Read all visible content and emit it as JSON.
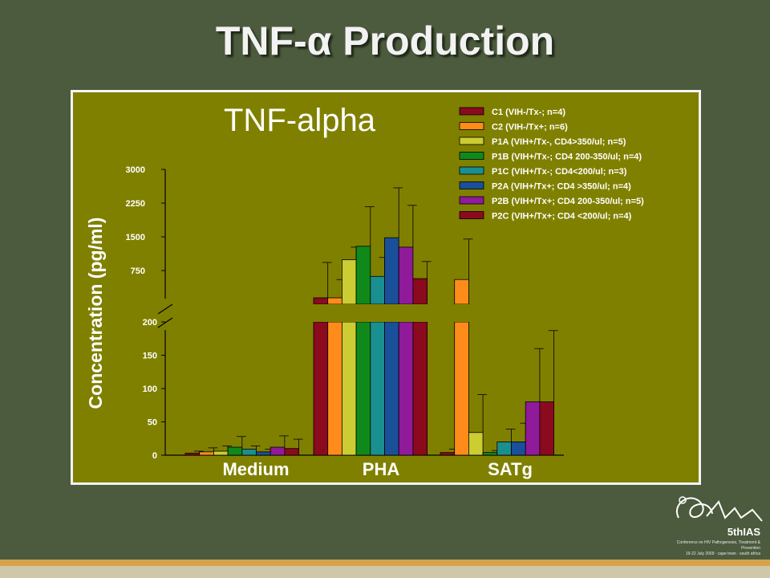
{
  "slide": {
    "title": "TNF-α Production"
  },
  "logo": {
    "name": "5thIAS",
    "subtitle": "Conference on HIV Pathogenesis, Treatment & Prevention",
    "dates": "19-22 July 2009 · cape town · south africa"
  },
  "chart_data": {
    "type": "bar",
    "title": "TNF-alpha",
    "ylabel": "Concentration (pg/ml)",
    "xlabel": "",
    "categories": [
      "Medium",
      "PHA",
      "SATg"
    ],
    "broken_axis": {
      "lower_range": [
        0,
        200
      ],
      "upper_range": [
        0,
        3000
      ],
      "lower_ticks": [
        0,
        50,
        100,
        150,
        200
      ],
      "upper_ticks": [
        750,
        1500,
        2250,
        3000
      ]
    },
    "legend_position": "top-right",
    "series": [
      {
        "name": "C1 (VIH-/Tx-; n=4)",
        "color": "#8b0a1e",
        "values": [
          3,
          200,
          4
        ],
        "errors": [
          3,
          930,
          5
        ]
      },
      {
        "name": "C2 (VIH-/Tx+; n=6)",
        "color": "#ff8c1a",
        "values": [
          5,
          200,
          550
        ],
        "errors": [
          6,
          550,
          900
        ]
      },
      {
        "name": "P1A (VIH+/Tx-, CD4>350/ul; n=5)",
        "color": "#cccc33",
        "values": [
          6,
          990,
          34
        ],
        "errors": [
          8,
          280,
          57
        ]
      },
      {
        "name": "P1B (VIH+/Tx-; CD4 200-350/ul; n=4)",
        "color": "#0f8a1a",
        "values": [
          12,
          1290,
          4
        ],
        "errors": [
          16,
          880,
          3
        ]
      },
      {
        "name": "P1C (VIH+/Tx-; CD4<200/ul; n=3)",
        "color": "#1a8f8f",
        "values": [
          9,
          620,
          20
        ],
        "errors": [
          5,
          420,
          19
        ]
      },
      {
        "name": "P2A (VIH+/Tx+; CD4 >350/ul; n=4)",
        "color": "#1a4f9a",
        "values": [
          5,
          1480,
          20
        ],
        "errors": [
          4,
          1110,
          28
        ]
      },
      {
        "name": "P2B (VIH+/Tx+; CD4 200-350/ul; n=5)",
        "color": "#8f1a9a",
        "values": [
          12,
          1270,
          80
        ],
        "errors": [
          17,
          930,
          80
        ]
      },
      {
        "name": "P2C (VIH+/Tx+; CD4 <200/ul; n=4)",
        "color": "#8b0a1e",
        "values": [
          10,
          570,
          80
        ],
        "errors": [
          14,
          380,
          107
        ]
      }
    ]
  }
}
